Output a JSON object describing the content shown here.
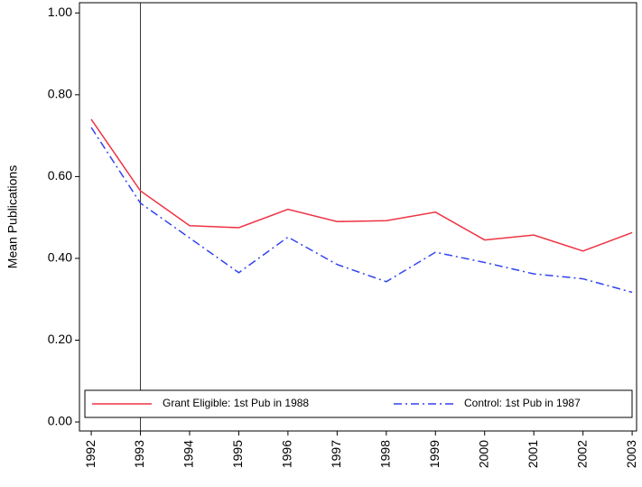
{
  "chart_data": {
    "type": "line",
    "y_label": "Mean Publications",
    "x": [
      1992,
      1993,
      1994,
      1995,
      1996,
      1997,
      1998,
      1999,
      2000,
      2001,
      2002,
      2003
    ],
    "series": [
      {
        "name": "Grant Eligible: 1st Pub in 1988",
        "color": "#ee3344",
        "dash": "solid",
        "values": [
          0.74,
          0.565,
          0.48,
          0.475,
          0.52,
          0.49,
          0.492,
          0.513,
          0.445,
          0.457,
          0.418,
          0.463
        ]
      },
      {
        "name": "Control: 1st Pub in 1987",
        "color": "#3344ee",
        "dash": "dashdot",
        "values": [
          0.72,
          0.535,
          0.45,
          0.365,
          0.452,
          0.385,
          0.343,
          0.415,
          0.39,
          0.362,
          0.35,
          0.317
        ]
      }
    ],
    "xlim": [
      1991.76,
      2003.09
    ],
    "xticks": [
      1992,
      1993,
      1994,
      1995,
      1996,
      1997,
      1998,
      1999,
      2000,
      2001,
      2002,
      2003
    ],
    "ylim": [
      -0.022,
      1.025
    ],
    "yticks": [
      {
        "value": 0,
        "label": "0.00"
      },
      {
        "value": 0.2,
        "label": "0.20"
      },
      {
        "value": 0.4,
        "label": "0.40"
      },
      {
        "value": 0.6,
        "label": "0.60"
      },
      {
        "value": 0.8,
        "label": "0.80"
      },
      {
        "value": 1,
        "label": "1.00"
      }
    ],
    "vline": 1993,
    "legend": "bottom",
    "grid": false
  }
}
